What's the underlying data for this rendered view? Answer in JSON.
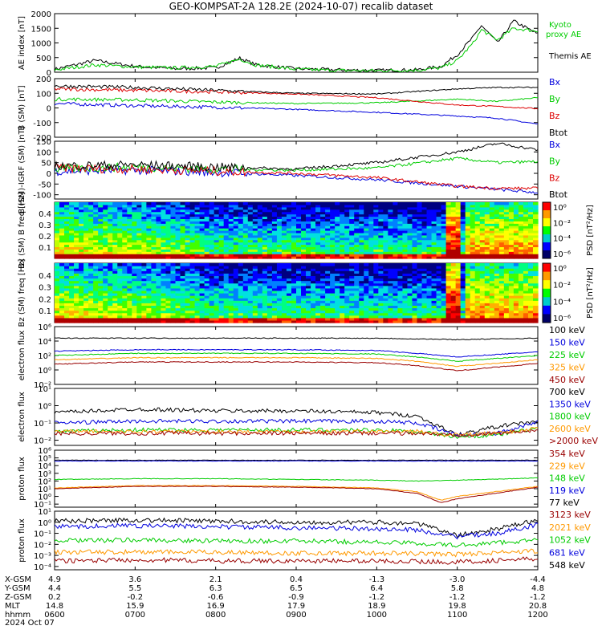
{
  "title": "GEO-KOMPSAT-2A 128.2E (2024-10-07) recalib dataset",
  "colors": {
    "black": "#000000",
    "blue": "#0000dd",
    "green": "#00cc00",
    "red": "#dd0000",
    "orange": "#ff9900",
    "darkred": "#990000",
    "kyoto": "#00cc00"
  },
  "chart_data": [
    {
      "type": "line",
      "id": "ae",
      "ylabel": "AE index [nT]",
      "ylim": [
        0,
        2000
      ],
      "yticks": [
        "0",
        "500",
        "1000",
        "1500",
        "2000"
      ],
      "legend": [
        {
          "name": "Kyoto proxy AE",
          "color": "#00cc00"
        },
        {
          "name": "Themis AE",
          "color": "#000000"
        }
      ],
      "series": [
        {
          "name": "Themis AE",
          "color": "#000000",
          "x": [
            0,
            0.5,
            1,
            1.5,
            2,
            2.3,
            2.5,
            3,
            3.5,
            4,
            4.5,
            4.8,
            5,
            5.2,
            5.3,
            5.5,
            5.7,
            6
          ],
          "values": [
            100,
            400,
            200,
            120,
            150,
            480,
            250,
            120,
            80,
            60,
            80,
            200,
            600,
            1200,
            1600,
            1000,
            1750,
            1300
          ]
        },
        {
          "name": "Kyoto proxy AE",
          "color": "#00cc00",
          "x": [
            0,
            0.5,
            1,
            1.5,
            2,
            2.3,
            2.5,
            3,
            3.5,
            4,
            4.5,
            4.8,
            5,
            5.2,
            5.3,
            5.5,
            5.7,
            6
          ],
          "values": [
            80,
            250,
            180,
            150,
            200,
            450,
            250,
            100,
            60,
            50,
            70,
            150,
            400,
            1000,
            1450,
            1100,
            1500,
            1400
          ]
        }
      ]
    },
    {
      "type": "line",
      "id": "bsm",
      "ylabel": "B (SM) [nT]",
      "ylim": [
        -200,
        200
      ],
      "yticks": [
        "-200",
        "-100",
        "0",
        "100",
        "200"
      ],
      "legend": [
        {
          "name": "Bx",
          "color": "#0000dd"
        },
        {
          "name": "By",
          "color": "#00cc00"
        },
        {
          "name": "Bz",
          "color": "#dd0000"
        },
        {
          "name": "Btot",
          "color": "#000000"
        }
      ],
      "series": [
        {
          "name": "Bx",
          "color": "#0000dd",
          "x": [
            0,
            1,
            2,
            3,
            4,
            5,
            5.5,
            6
          ],
          "values": [
            30,
            15,
            5,
            -10,
            -30,
            -55,
            -70,
            -110
          ]
        },
        {
          "name": "By",
          "color": "#00cc00",
          "x": [
            0,
            1,
            2,
            3,
            4,
            5,
            5.5,
            6
          ],
          "values": [
            60,
            55,
            40,
            30,
            35,
            60,
            45,
            70
          ]
        },
        {
          "name": "Bz",
          "color": "#dd0000",
          "x": [
            0,
            1,
            2,
            3,
            4,
            5,
            5.5,
            6
          ],
          "values": [
            130,
            120,
            110,
            95,
            70,
            20,
            10,
            -5
          ]
        },
        {
          "name": "Btot",
          "color": "#000000",
          "x": [
            0,
            1,
            2,
            3,
            4,
            5,
            5.5,
            6
          ],
          "values": [
            150,
            140,
            120,
            100,
            95,
            130,
            140,
            140
          ]
        }
      ]
    },
    {
      "type": "line",
      "id": "bgrf",
      "ylabel": "B (SM)-IGRF (SM) [nT]",
      "ylim": [
        -120,
        150
      ],
      "yticks": [
        "-100",
        "-50",
        "0",
        "50",
        "100",
        "150"
      ],
      "legend": [
        {
          "name": "Bx",
          "color": "#0000dd"
        },
        {
          "name": "By",
          "color": "#00cc00"
        },
        {
          "name": "Bz",
          "color": "#dd0000"
        },
        {
          "name": "Btot",
          "color": "#000000"
        }
      ],
      "series": [
        {
          "name": "Bx",
          "color": "#0000dd",
          "x": [
            0,
            1,
            2,
            3,
            4,
            5,
            5.5,
            6
          ],
          "values": [
            10,
            15,
            5,
            -10,
            -30,
            -60,
            -75,
            -90
          ]
        },
        {
          "name": "By",
          "color": "#00cc00",
          "x": [
            0,
            1,
            2,
            3,
            4,
            5,
            5.5,
            6
          ],
          "values": [
            20,
            30,
            20,
            15,
            25,
            70,
            50,
            55
          ]
        },
        {
          "name": "Bz",
          "color": "#dd0000",
          "x": [
            0,
            1,
            2,
            3,
            4,
            5,
            5.5,
            6
          ],
          "values": [
            25,
            20,
            10,
            0,
            -20,
            -60,
            -70,
            -70
          ]
        },
        {
          "name": "Btot",
          "color": "#000000",
          "x": [
            0,
            1,
            2,
            3,
            4,
            5,
            5.5,
            6
          ],
          "values": [
            35,
            40,
            30,
            20,
            50,
            100,
            140,
            110
          ]
        }
      ]
    },
    {
      "type": "heatmap",
      "id": "bx_psd",
      "ylabel": "Bx (SM) B freq [Hz]",
      "yticks": [
        "0.1",
        "0.2",
        "0.3",
        "0.4"
      ],
      "colorbar": {
        "label": "PSD [nT²/Hz]",
        "ticks": [
          "10⁰",
          "10⁻²",
          "10⁻⁴",
          "10⁻⁶"
        ]
      }
    },
    {
      "type": "heatmap",
      "id": "bz_psd",
      "ylabel": "Bz (SM) freq [Hz]",
      "yticks": [
        "0.1",
        "0.2",
        "0.3",
        "0.4"
      ],
      "colorbar": {
        "label": "PSD [nT²/Hz]",
        "ticks": [
          "10⁰",
          "10⁻²",
          "10⁻⁴",
          "10⁻⁶"
        ]
      }
    },
    {
      "type": "line",
      "id": "eflux1",
      "ylabel": "electron flux",
      "yscale": "log",
      "ylim": [
        -2,
        6
      ],
      "yticks": [
        "10⁻²",
        "10⁰",
        "10²",
        "10⁴",
        "10⁶"
      ],
      "legend": [
        {
          "name": "100 keV",
          "color": "#000000"
        },
        {
          "name": "150 keV",
          "color": "#0000dd"
        },
        {
          "name": "225 keV",
          "color": "#00cc00"
        },
        {
          "name": "325 keV",
          "color": "#ff9900"
        },
        {
          "name": "450 keV",
          "color": "#990000"
        }
      ],
      "series": [
        {
          "name": "100 keV",
          "color": "#000000",
          "x": [
            0,
            1,
            2,
            3,
            4,
            4.5,
            5,
            6
          ],
          "values": [
            4.4,
            4.4,
            4.4,
            4.4,
            4.4,
            4.3,
            4.2,
            4.4
          ]
        },
        {
          "name": "150 keV",
          "color": "#0000dd",
          "x": [
            0,
            1,
            2,
            3,
            4,
            4.5,
            5,
            6
          ],
          "values": [
            2.6,
            2.8,
            2.8,
            2.8,
            2.7,
            2.3,
            1.8,
            2.5
          ]
        },
        {
          "name": "225 keV",
          "color": "#00cc00",
          "x": [
            0,
            1,
            2,
            3,
            4,
            4.5,
            5,
            6
          ],
          "values": [
            2.0,
            2.3,
            2.3,
            2.3,
            2.2,
            1.8,
            1.2,
            2.0
          ]
        },
        {
          "name": "325 keV",
          "color": "#ff9900",
          "x": [
            0,
            1,
            2,
            3,
            4,
            4.5,
            5,
            6
          ],
          "values": [
            1.4,
            1.7,
            1.7,
            1.7,
            1.6,
            1.2,
            0.5,
            1.4
          ]
        },
        {
          "name": "450 keV",
          "color": "#990000",
          "x": [
            0,
            1,
            2,
            3,
            4,
            4.5,
            5,
            6
          ],
          "values": [
            0.8,
            1.1,
            1.1,
            1.1,
            1.0,
            0.6,
            -0.1,
            0.9
          ]
        }
      ]
    },
    {
      "type": "line",
      "id": "eflux2",
      "ylabel": "electron flux",
      "yscale": "log",
      "ylim": [
        -2.3,
        1
      ],
      "yticks": [
        "10⁻²",
        "10⁻¹",
        "10⁰",
        "10¹"
      ],
      "legend": [
        {
          "name": "700 keV",
          "color": "#000000"
        },
        {
          "name": "1350 keV",
          "color": "#0000dd"
        },
        {
          "name": "1800 keV",
          "color": "#00cc00"
        },
        {
          "name": "2600 keV",
          "color": "#ff9900"
        },
        {
          "name": ">2000 keV",
          "color": "#990000"
        }
      ],
      "series": [
        {
          "name": "700 keV",
          "color": "#000000",
          "x": [
            0,
            1,
            2,
            3,
            4,
            4.5,
            5,
            5.5,
            6
          ],
          "values": [
            -0.4,
            -0.2,
            -0.3,
            -0.3,
            -0.4,
            -0.6,
            -1.7,
            -1.2,
            -0.9
          ]
        },
        {
          "name": "1350 keV",
          "color": "#0000dd",
          "x": [
            0,
            1,
            2,
            3,
            4,
            4.5,
            5,
            5.5,
            6
          ],
          "values": [
            -1.0,
            -0.9,
            -0.9,
            -0.9,
            -0.9,
            -1.0,
            -1.7,
            -1.6,
            -0.9
          ]
        },
        {
          "name": "1800 keV",
          "color": "#00cc00",
          "x": [
            0,
            1,
            2,
            3,
            4,
            4.5,
            5,
            5.5,
            6
          ],
          "values": [
            -1.5,
            -1.4,
            -1.4,
            -1.4,
            -1.4,
            -1.5,
            -1.8,
            -1.7,
            -1.3
          ]
        },
        {
          "name": "2600 keV",
          "color": "#ff9900",
          "x": [
            0,
            1,
            2,
            3,
            4,
            4.5,
            5,
            5.5,
            6
          ],
          "values": [
            -1.5,
            -1.5,
            -1.5,
            -1.5,
            -1.5,
            -1.5,
            -1.7,
            -1.6,
            -1.3
          ]
        },
        {
          "name": ">2000 keV",
          "color": "#990000",
          "x": [
            0,
            1,
            2,
            3,
            4,
            4.5,
            5,
            5.5,
            6
          ],
          "values": [
            -1.6,
            -1.6,
            -1.6,
            -1.6,
            -1.6,
            -1.6,
            -1.7,
            -1.6,
            -1.4
          ]
        }
      ]
    },
    {
      "type": "line",
      "id": "pflux1",
      "ylabel": "proton flux",
      "yscale": "log",
      "ylim": [
        -1.4,
        6
      ],
      "yticks": [
        "10⁻¹",
        "10⁰",
        "10¹",
        "10²",
        "10³",
        "10⁴",
        "10⁵",
        "10⁶"
      ],
      "legend": [
        {
          "name": "354 keV",
          "color": "#990000"
        },
        {
          "name": "229 keV",
          "color": "#ff9900"
        },
        {
          "name": "148 keV",
          "color": "#00cc00"
        },
        {
          "name": "119 keV",
          "color": "#0000dd"
        },
        {
          "name": "77 keV",
          "color": "#000000"
        }
      ],
      "series": [
        {
          "name": "77 keV",
          "color": "#000000",
          "x": [
            0,
            1,
            2,
            3,
            4,
            5,
            6
          ],
          "values": [
            4.7,
            4.7,
            4.7,
            4.7,
            4.7,
            4.7,
            4.7
          ]
        },
        {
          "name": "119 keV",
          "color": "#0000dd",
          "x": [
            0,
            1,
            2,
            3,
            4,
            5,
            6
          ],
          "values": [
            4.6,
            4.6,
            4.6,
            4.6,
            4.6,
            4.6,
            4.6
          ]
        },
        {
          "name": "148 keV",
          "color": "#00cc00",
          "x": [
            0,
            1,
            2,
            3,
            4,
            4.5,
            5,
            6
          ],
          "values": [
            2.2,
            2.3,
            2.3,
            2.2,
            2.1,
            2.0,
            2.1,
            2.4
          ]
        },
        {
          "name": "229 keV",
          "color": "#ff9900",
          "x": [
            0,
            1,
            2,
            3,
            4,
            4.5,
            4.8,
            5,
            6
          ],
          "values": [
            1.1,
            1.4,
            1.4,
            1.3,
            1.1,
            0.6,
            -0.5,
            0.0,
            1.3
          ]
        },
        {
          "name": "354 keV",
          "color": "#990000",
          "x": [
            0,
            1,
            2,
            3,
            4,
            4.5,
            4.8,
            5,
            6
          ],
          "values": [
            1.0,
            1.3,
            1.3,
            1.2,
            1.0,
            0.4,
            -0.8,
            -0.3,
            1.2
          ]
        }
      ]
    },
    {
      "type": "line",
      "id": "pflux2",
      "ylabel": "proton flux",
      "yscale": "log",
      "ylim": [
        -4.3,
        1
      ],
      "yticks": [
        "10⁻⁴",
        "10⁻³",
        "10⁻²",
        "10⁻¹",
        "10⁰",
        "10¹"
      ],
      "legend": [
        {
          "name": "3123 keV",
          "color": "#990000"
        },
        {
          "name": "2021 keV",
          "color": "#ff9900"
        },
        {
          "name": "1052 keV",
          "color": "#00cc00"
        },
        {
          "name": "681 keV",
          "color": "#0000dd"
        },
        {
          "name": "548 keV",
          "color": "#000000"
        }
      ],
      "series": [
        {
          "name": "548 keV",
          "color": "#000000",
          "x": [
            0,
            1,
            2,
            3,
            4,
            4.5,
            5,
            5.5,
            6
          ],
          "values": [
            0.1,
            0.2,
            0.1,
            0.0,
            0.0,
            -0.1,
            -1.2,
            -0.6,
            0.2
          ]
        },
        {
          "name": "681 keV",
          "color": "#0000dd",
          "x": [
            0,
            1,
            2,
            3,
            4,
            4.5,
            5,
            5.5,
            6
          ],
          "values": [
            -0.4,
            -0.3,
            -0.4,
            -0.5,
            -0.6,
            -0.7,
            -1.3,
            -1.0,
            -0.2
          ]
        },
        {
          "name": "1052 keV",
          "color": "#00cc00",
          "x": [
            0,
            1,
            2,
            3,
            4,
            4.5,
            5,
            6
          ],
          "values": [
            -1.7,
            -1.6,
            -1.7,
            -1.7,
            -1.8,
            -1.9,
            -2.1,
            -1.6
          ]
        },
        {
          "name": "2021 keV",
          "color": "#ff9900",
          "x": [
            0,
            1,
            2,
            3,
            4,
            5,
            6
          ],
          "values": [
            -2.7,
            -2.7,
            -2.7,
            -2.8,
            -2.8,
            -2.9,
            -2.6
          ]
        },
        {
          "name": "3123 keV",
          "color": "#990000",
          "x": [
            0,
            1,
            2,
            3,
            4,
            5,
            6
          ],
          "values": [
            -3.5,
            -3.4,
            -3.5,
            -3.5,
            -3.5,
            -3.6,
            -3.3
          ]
        }
      ]
    }
  ],
  "footer": {
    "row_labels": [
      "X-GSM",
      "Y-GSM",
      "Z-GSM",
      "MLT",
      "hhmm",
      "2024 Oct 07"
    ],
    "columns": [
      {
        "vals": [
          "4.9",
          "4.4",
          "0.2",
          "14.8",
          "0600"
        ]
      },
      {
        "vals": [
          "3.6",
          "5.5",
          "-0.2",
          "15.9",
          "0700"
        ]
      },
      {
        "vals": [
          "2.1",
          "6.3",
          "-0.6",
          "16.9",
          "0800"
        ]
      },
      {
        "vals": [
          "0.4",
          "6.5",
          "-0.9",
          "17.9",
          "0900"
        ]
      },
      {
        "vals": [
          "-1.3",
          "6.4",
          "-1.2",
          "18.9",
          "1000"
        ]
      },
      {
        "vals": [
          "-3.0",
          "5.8",
          "-1.2",
          "19.8",
          "1100"
        ]
      },
      {
        "vals": [
          "-4.4",
          "4.8",
          "-1.2",
          "20.8",
          "1200"
        ]
      }
    ]
  }
}
